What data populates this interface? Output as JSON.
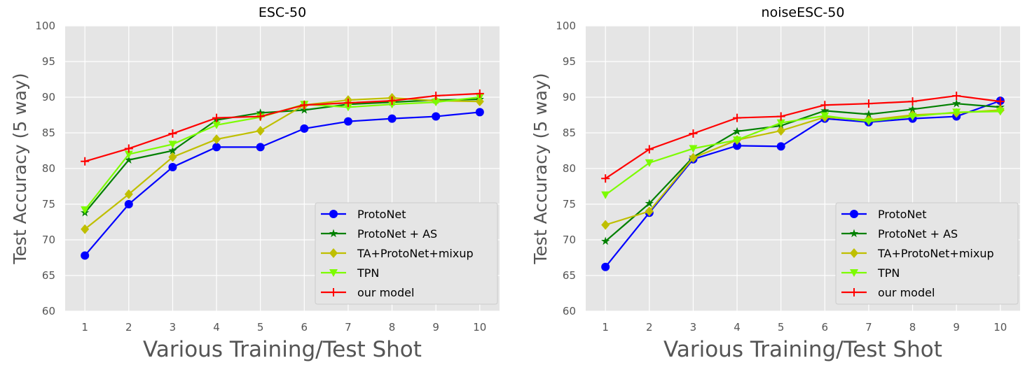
{
  "chart_data": [
    {
      "type": "line",
      "title": "ESC-50",
      "xlabel": "Various Training/Test Shot",
      "ylabel": "Test Accuracy (5 way)",
      "x": [
        1,
        2,
        3,
        4,
        5,
        6,
        7,
        8,
        9,
        10
      ],
      "ylim": [
        60,
        100
      ],
      "yticks": [
        60,
        65,
        70,
        75,
        80,
        85,
        90,
        95,
        100
      ],
      "grid": true,
      "legend": "lower-right",
      "series": [
        {
          "name": "ProtoNet",
          "color": "#0000ff",
          "marker": "circle",
          "values": [
            67.8,
            75.0,
            80.2,
            83.0,
            83.0,
            85.6,
            86.6,
            87.0,
            87.3,
            87.9
          ]
        },
        {
          "name": "ProtoNet + AS",
          "color": "#008000",
          "marker": "star",
          "values": [
            73.8,
            81.2,
            82.5,
            86.8,
            87.8,
            88.2,
            89.0,
            89.3,
            89.6,
            89.7
          ]
        },
        {
          "name": "TA+ProtoNet+mixup",
          "color": "#bfbf00",
          "marker": "diamond",
          "values": [
            71.5,
            76.4,
            81.6,
            84.1,
            85.3,
            88.9,
            89.6,
            89.9,
            89.5,
            89.4
          ]
        },
        {
          "name": "TPN",
          "color": "#7cfc00",
          "marker": "triangle-down",
          "values": [
            74.2,
            82.0,
            83.4,
            86.1,
            87.2,
            89.0,
            88.6,
            89.0,
            89.3,
            90.0
          ]
        },
        {
          "name": "our model",
          "color": "#ff0000",
          "marker": "plus",
          "values": [
            81.0,
            82.8,
            84.9,
            87.1,
            87.3,
            88.9,
            89.2,
            89.5,
            90.2,
            90.5
          ]
        }
      ]
    },
    {
      "type": "line",
      "title": "noiseESC-50",
      "xlabel": "Various Training/Test Shot",
      "ylabel": "Test Accuracy (5 way)",
      "x": [
        1,
        2,
        3,
        4,
        5,
        6,
        7,
        8,
        9,
        10
      ],
      "ylim": [
        60,
        100
      ],
      "yticks": [
        60,
        65,
        70,
        75,
        80,
        85,
        90,
        95,
        100
      ],
      "grid": true,
      "legend": "lower-right",
      "series": [
        {
          "name": "ProtoNet",
          "color": "#0000ff",
          "marker": "circle",
          "values": [
            66.2,
            73.8,
            81.3,
            83.2,
            83.1,
            87.0,
            86.5,
            87.0,
            87.3,
            89.5
          ]
        },
        {
          "name": "ProtoNet + AS",
          "color": "#008000",
          "marker": "star",
          "values": [
            69.8,
            75.1,
            81.6,
            85.2,
            86.0,
            88.1,
            87.6,
            88.3,
            89.1,
            88.6
          ]
        },
        {
          "name": "TA+ProtoNet+mixup",
          "color": "#bfbf00",
          "marker": "diamond",
          "values": [
            72.1,
            74.0,
            81.5,
            84.0,
            85.3,
            87.2,
            86.8,
            87.5,
            87.8,
            88.2
          ]
        },
        {
          "name": "TPN",
          "color": "#7cfc00",
          "marker": "triangle-down",
          "values": [
            76.3,
            80.8,
            82.8,
            84.0,
            86.4,
            87.4,
            86.6,
            87.3,
            87.9,
            88.0
          ]
        },
        {
          "name": "our model",
          "color": "#ff0000",
          "marker": "plus",
          "values": [
            78.6,
            82.7,
            84.9,
            87.1,
            87.3,
            88.9,
            89.1,
            89.4,
            90.2,
            89.4
          ]
        }
      ]
    }
  ]
}
